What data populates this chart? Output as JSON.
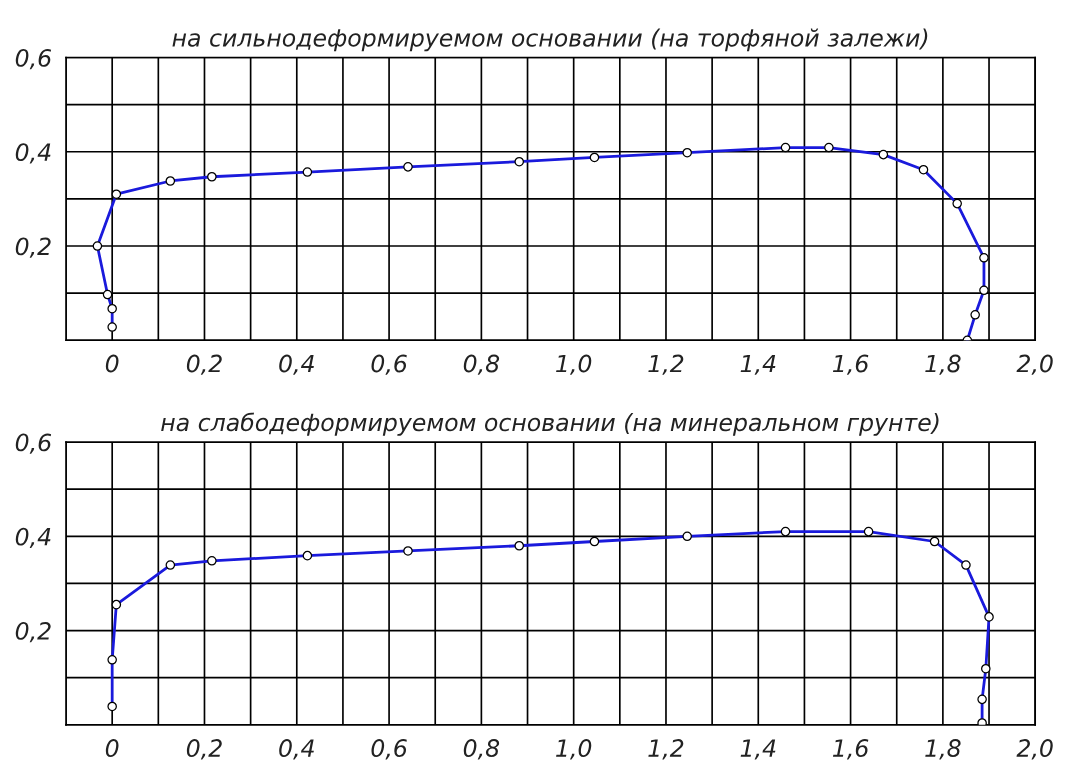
{
  "chart_data": [
    {
      "type": "line",
      "title": "на сильнодеформируемом основании (на торфяной залежи)",
      "marker": "circle",
      "line_style": "solid",
      "grid": true,
      "xlim": [
        -0.1,
        2.0
      ],
      "ylim": [
        0,
        0.6
      ],
      "xticks": [
        {
          "value": -0.1,
          "label": null
        },
        {
          "value": 0,
          "label": "0"
        },
        {
          "value": 0.1,
          "label": null
        },
        {
          "value": 0.2,
          "label": "0,2"
        },
        {
          "value": 0.3,
          "label": null
        },
        {
          "value": 0.4,
          "label": "0,4"
        },
        {
          "value": 0.5,
          "label": null
        },
        {
          "value": 0.6,
          "label": "0,6"
        },
        {
          "value": 0.7,
          "label": null
        },
        {
          "value": 0.8,
          "label": "0,8"
        },
        {
          "value": 0.9,
          "label": null
        },
        {
          "value": 1.0,
          "label": "1,0"
        },
        {
          "value": 1.1,
          "label": null
        },
        {
          "value": 1.2,
          "label": "1,2"
        },
        {
          "value": 1.3,
          "label": null
        },
        {
          "value": 1.4,
          "label": "1,4"
        },
        {
          "value": 1.5,
          "label": null
        },
        {
          "value": 1.6,
          "label": "1,6"
        },
        {
          "value": 1.7,
          "label": null
        },
        {
          "value": 1.8,
          "label": "1,8"
        },
        {
          "value": 1.9,
          "label": null
        },
        {
          "value": 2.0,
          "label": "2,0"
        }
      ],
      "yticks": [
        {
          "value": 0,
          "label": null
        },
        {
          "value": 0.1,
          "label": null
        },
        {
          "value": 0.2,
          "label": "0,2"
        },
        {
          "value": 0.3,
          "label": null
        },
        {
          "value": 0.4,
          "label": "0,4"
        },
        {
          "value": 0.5,
          "label": null
        },
        {
          "value": 0.6,
          "label": "0,6"
        }
      ],
      "series": [
        {
          "color": "#1a1adc",
          "x": [
            0.0,
            0.0,
            -0.01,
            -0.032,
            0.009,
            0.126,
            0.216,
            0.423,
            0.641,
            0.882,
            1.045,
            1.246,
            1.459,
            1.553,
            1.671,
            1.758,
            1.831,
            1.889,
            1.889,
            1.87,
            1.853
          ],
          "values": [
            0.028,
            0.067,
            0.097,
            0.2,
            0.31,
            0.338,
            0.347,
            0.357,
            0.368,
            0.379,
            0.388,
            0.398,
            0.409,
            0.409,
            0.394,
            0.362,
            0.29,
            0.175,
            0.106,
            0.054,
            0.0
          ]
        }
      ]
    },
    {
      "type": "line",
      "title": "на слабодеформируемом основании (на минеральном грунте)",
      "marker": "circle",
      "line_style": "solid",
      "grid": true,
      "xlim": [
        -0.1,
        2.0
      ],
      "ylim": [
        0,
        0.6
      ],
      "xticks": [
        {
          "value": -0.1,
          "label": null
        },
        {
          "value": 0,
          "label": "0"
        },
        {
          "value": 0.1,
          "label": null
        },
        {
          "value": 0.2,
          "label": "0,2"
        },
        {
          "value": 0.3,
          "label": null
        },
        {
          "value": 0.4,
          "label": "0,4"
        },
        {
          "value": 0.5,
          "label": null
        },
        {
          "value": 0.6,
          "label": "0,6"
        },
        {
          "value": 0.7,
          "label": null
        },
        {
          "value": 0.8,
          "label": "0,8"
        },
        {
          "value": 0.9,
          "label": null
        },
        {
          "value": 1.0,
          "label": "1,0"
        },
        {
          "value": 1.1,
          "label": null
        },
        {
          "value": 1.2,
          "label": "1,2"
        },
        {
          "value": 1.3,
          "label": null
        },
        {
          "value": 1.4,
          "label": "1,4"
        },
        {
          "value": 1.5,
          "label": null
        },
        {
          "value": 1.6,
          "label": "1,6"
        },
        {
          "value": 1.7,
          "label": null
        },
        {
          "value": 1.8,
          "label": "1,8"
        },
        {
          "value": 1.9,
          "label": null
        },
        {
          "value": 2.0,
          "label": "2,0"
        }
      ],
      "yticks": [
        {
          "value": 0,
          "label": null
        },
        {
          "value": 0.1,
          "label": null
        },
        {
          "value": 0.2,
          "label": "0,2"
        },
        {
          "value": 0.3,
          "label": null
        },
        {
          "value": 0.4,
          "label": "0,4"
        },
        {
          "value": 0.5,
          "label": null
        },
        {
          "value": 0.6,
          "label": "0,6"
        }
      ],
      "series": [
        {
          "color": "#1a1adc",
          "x": [
            0.0,
            0.0,
            0.009,
            0.126,
            0.216,
            0.423,
            0.641,
            0.882,
            1.045,
            1.246,
            1.459,
            1.639,
            1.782,
            1.85,
            1.9,
            1.893,
            1.885,
            1.885
          ],
          "values": [
            0.039,
            0.138,
            0.255,
            0.339,
            0.348,
            0.359,
            0.369,
            0.38,
            0.389,
            0.4,
            0.41,
            0.41,
            0.389,
            0.339,
            0.229,
            0.119,
            0.054,
            0.004
          ]
        }
      ]
    }
  ]
}
